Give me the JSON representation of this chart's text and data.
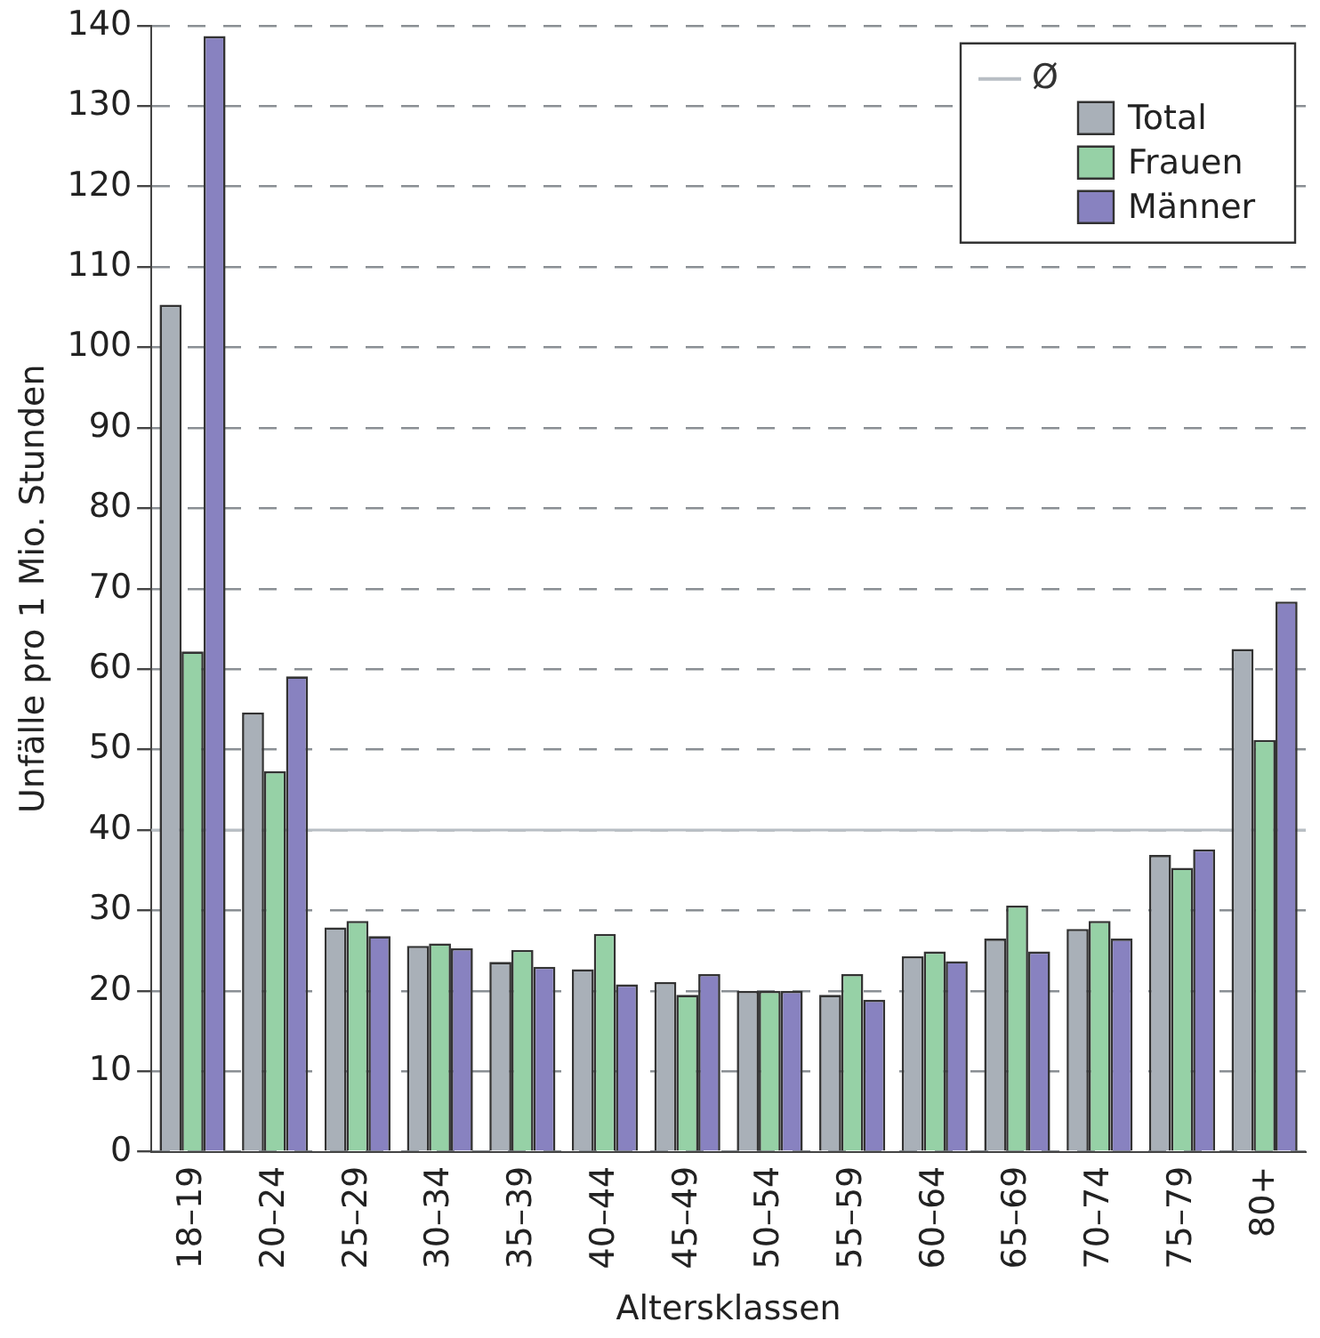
{
  "chart_data": {
    "type": "bar",
    "xlabel": "Altersklassen",
    "ylabel": "Unfälle pro 1 Mio. Stunden",
    "categories": [
      "18–19",
      "20–24",
      "25–29",
      "30–34",
      "35–39",
      "40–44",
      "45–49",
      "50–54",
      "55–59",
      "60–64",
      "65–69",
      "70–74",
      "75–79",
      "80+"
    ],
    "series": [
      {
        "name": "Total",
        "color": "#a9b0b8",
        "values": [
          105.3,
          54.6,
          27.9,
          25.6,
          23.6,
          22.7,
          21.1,
          20,
          19.5,
          24.3,
          26.5,
          27.7,
          36.9,
          62.5
        ]
      },
      {
        "name": "Frauen",
        "color": "#96d1a6",
        "values": [
          62.2,
          47.3,
          28.7,
          25.9,
          25.1,
          27.1,
          19.5,
          20,
          22.1,
          24.9,
          30.6,
          28.7,
          35.3,
          51.2
        ]
      },
      {
        "name": "Männer",
        "color": "#8882c0",
        "values": [
          138.7,
          59.1,
          26.8,
          25.3,
          23.0,
          20.8,
          22.1,
          20,
          18.9,
          23.7,
          24.9,
          26.5,
          37.6,
          68.4
        ]
      }
    ],
    "ylim": [
      0,
      140
    ],
    "yticks": [
      0,
      10,
      20,
      30,
      40,
      50,
      60,
      70,
      80,
      90,
      100,
      110,
      120,
      130,
      140
    ],
    "ref_lines": [
      {
        "axis": "y",
        "value": 40,
        "label": "Ø",
        "color": "#b8bec4"
      }
    ],
    "grid": "y",
    "legend": "top right"
  }
}
